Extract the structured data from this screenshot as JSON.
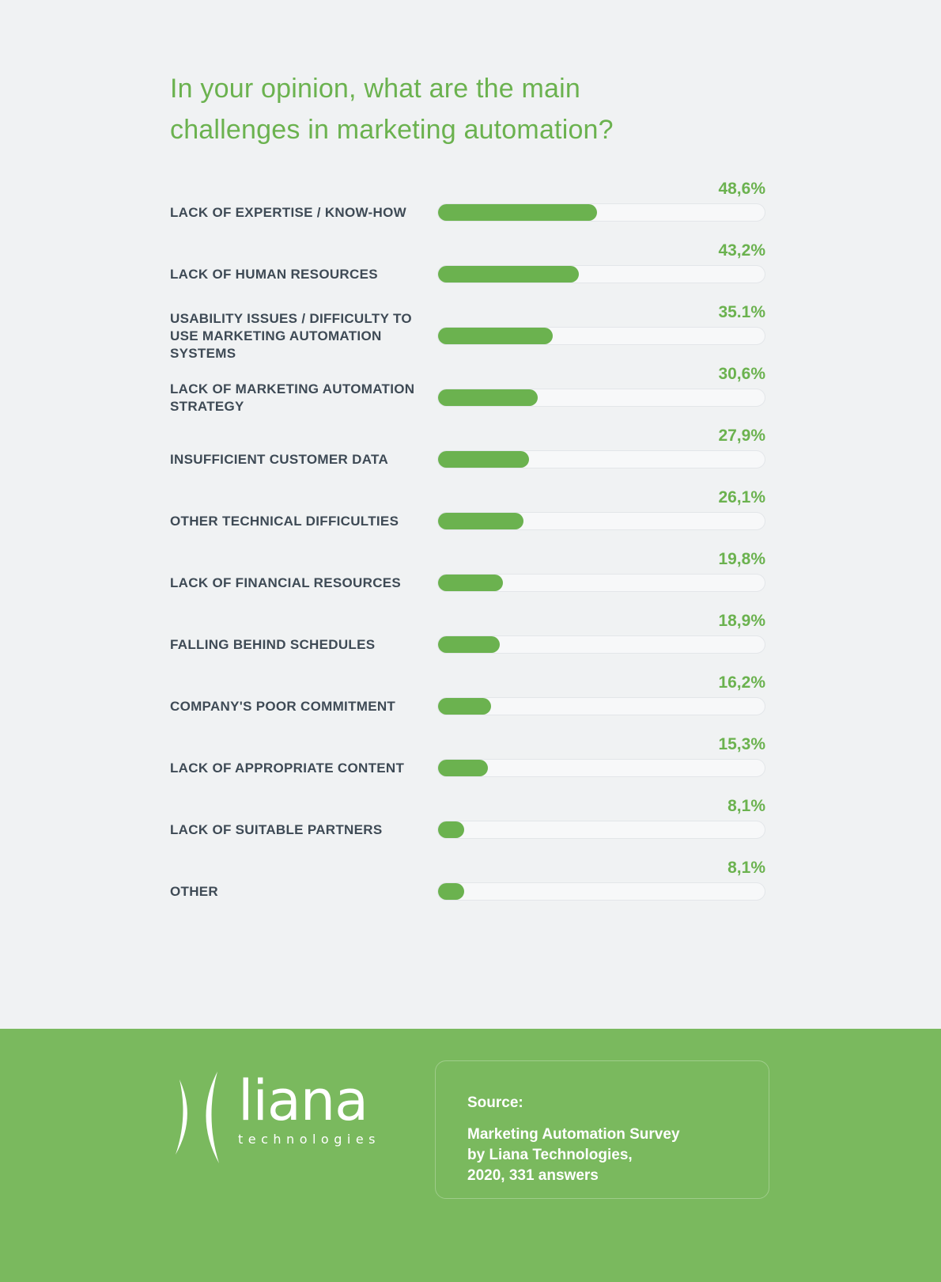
{
  "title": "In your opinion, what are the main challenges in marketing automation?",
  "colors": {
    "page_bg": "#f0f2f3",
    "accent_green": "#6bb24f",
    "footer_green": "#7ab95e",
    "label_color": "#3e4a55",
    "track_bg": "#f7f8f9",
    "track_border": "#e3e6e9"
  },
  "chart_data": {
    "type": "bar",
    "orientation": "horizontal",
    "title": "In your opinion, what are the main challenges in marketing automation?",
    "xlim": [
      0,
      100
    ],
    "grid": false,
    "legend": false,
    "categories": [
      "LACK OF EXPERTISE / KNOW-HOW",
      "LACK OF HUMAN RESOURCES",
      "USABILITY ISSUES / DIFFICULTY TO USE MARKETING AUTOMATION SYSTEMS",
      "LACK OF MARKETING AUTOMATION STRATEGY",
      "INSUFFICIENT CUSTOMER DATA",
      "OTHER TECHNICAL DIFFICULTIES",
      "LACK OF FINANCIAL RESOURCES",
      "FALLING BEHIND SCHEDULES",
      "COMPANY'S POOR COMMITMENT",
      "LACK OF APPROPRIATE CONTENT",
      "LACK OF SUITABLE PARTNERS",
      "OTHER"
    ],
    "values": [
      48.6,
      43.2,
      35.1,
      30.6,
      27.9,
      26.1,
      19.8,
      18.9,
      16.2,
      15.3,
      8.1,
      8.1
    ],
    "value_labels": [
      "48,6%",
      "43,2%",
      "35.1%",
      "30,6%",
      "27,9%",
      "26,1%",
      "19,8%",
      "18,9%",
      "16,2%",
      "15,3%",
      "8,1%",
      "8,1%"
    ]
  },
  "footer": {
    "logo_name": "liana",
    "logo_sub": "technologies",
    "source_label": "Source:",
    "source_lines": [
      "Marketing Automation Survey",
      "by Liana Technologies,",
      "2020, 331 answers"
    ]
  }
}
